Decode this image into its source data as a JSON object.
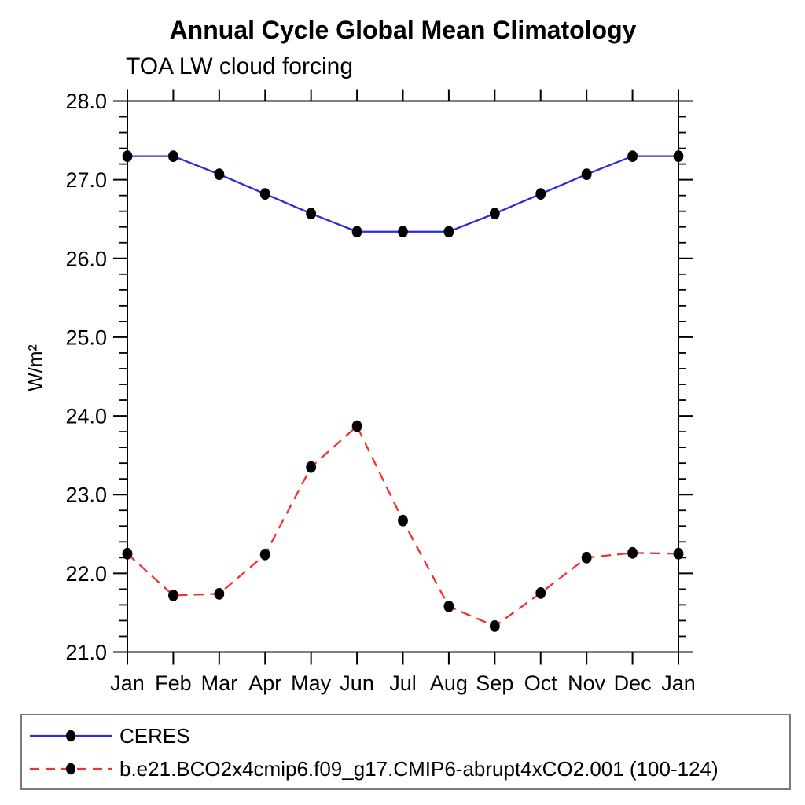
{
  "title": "Annual Cycle Global Mean Climatology",
  "subtitle": "TOA LW cloud forcing",
  "colors": {
    "ceres_line": "#2b2bdf",
    "model_line": "#f63030",
    "marker": "#000000",
    "axis": "#000000",
    "legend_border": "#7a7a7a"
  },
  "chart_data": {
    "type": "line",
    "title": "Annual Cycle Global Mean Climatology",
    "subtitle": "TOA LW cloud forcing",
    "ylabel": "W/m²",
    "xlabel": "",
    "categories": [
      "Jan",
      "Feb",
      "Mar",
      "Apr",
      "May",
      "Jun",
      "Jul",
      "Aug",
      "Sep",
      "Oct",
      "Nov",
      "Dec",
      "Jan"
    ],
    "series": [
      {
        "name": "CERES",
        "color": "#2b2bdf",
        "line_style": "solid",
        "marker": "filled-circle",
        "marker_color": "#000000",
        "values": [
          27.3,
          27.3,
          27.07,
          26.82,
          26.57,
          26.34,
          26.34,
          26.34,
          26.57,
          26.82,
          27.07,
          27.3,
          27.3
        ]
      },
      {
        "name": "b.e21.BCO2x4cmip6.f09_g17.CMIP6-abrupt4xCO2.001 (100-124)",
        "color": "#f63030",
        "line_style": "dashed",
        "marker": "filled-circle",
        "marker_color": "#000000",
        "values": [
          22.25,
          21.72,
          21.74,
          22.24,
          23.35,
          23.87,
          22.67,
          21.58,
          21.33,
          21.75,
          22.2,
          22.26,
          22.25
        ]
      }
    ],
    "ylim": [
      21.0,
      28.0
    ],
    "y_major_step": 1.0,
    "y_minor_step": 0.2,
    "y_tick_labels": [
      "21.0",
      "22.0",
      "23.0",
      "24.0",
      "25.0",
      "26.0",
      "27.0",
      "28.0"
    ],
    "grid": false,
    "legend_position": "bottom"
  }
}
